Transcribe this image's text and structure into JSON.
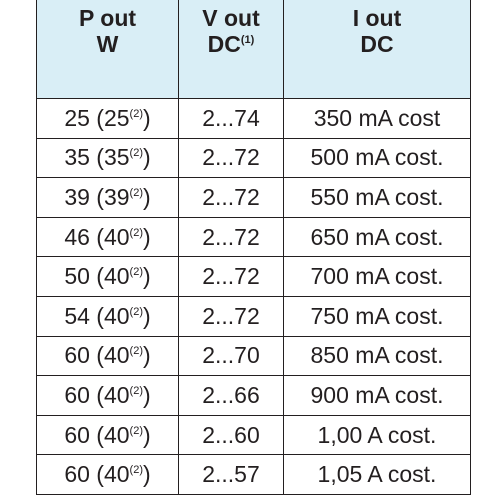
{
  "table": {
    "header": [
      {
        "line1": "P out",
        "line2": "W"
      },
      {
        "line1": "V out",
        "line2": "DC",
        "sup": "(1)"
      },
      {
        "line1": "I out",
        "line2": "DC"
      }
    ],
    "rows": [
      [
        {
          "before": "25 (25",
          "sup": "(2)",
          "after": ")"
        },
        "2...74",
        "350 mA cost"
      ],
      [
        {
          "before": "35 (35",
          "sup": "(2)",
          "after": ")"
        },
        "2...72",
        "500 mA cost."
      ],
      [
        {
          "before": "39 (39",
          "sup": "(2)",
          "after": ")"
        },
        "2...72",
        "550 mA cost."
      ],
      [
        {
          "before": "46 (40",
          "sup": "(2)",
          "after": ")"
        },
        "2...72",
        "650 mA cost."
      ],
      [
        {
          "before": "50 (40",
          "sup": "(2)",
          "after": ")"
        },
        "2...72",
        "700 mA cost."
      ],
      [
        {
          "before": "54 (40",
          "sup": "(2)",
          "after": ")"
        },
        "2...72",
        "750 mA cost."
      ],
      [
        {
          "before": "60 (40",
          "sup": "(2)",
          "after": ")"
        },
        "2...70",
        "850 mA cost."
      ],
      [
        {
          "before": "60 (40",
          "sup": "(2)",
          "after": ")"
        },
        "2...66",
        "900 mA cost."
      ],
      [
        {
          "before": "60 (40",
          "sup": "(2)",
          "after": ")"
        },
        "2...60",
        "1,00 A cost."
      ],
      [
        {
          "before": "60 (40",
          "sup": "(2)",
          "after": ")"
        },
        "2...57",
        "1,05 A cost."
      ]
    ]
  }
}
